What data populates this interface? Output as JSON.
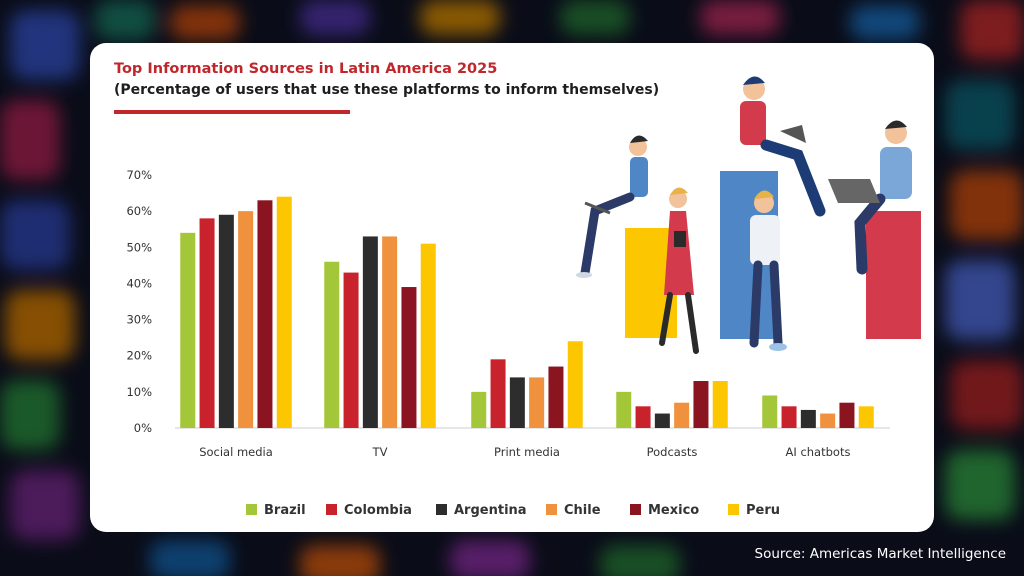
{
  "title": "Top Information Sources in Latin America 2025",
  "subtitle": "(Percentage of users that use these platforms to inform themselves)",
  "source": "Source: Americas Market Intelligence",
  "chart_data": {
    "type": "bar",
    "title": "Top Information Sources in Latin America 2025",
    "subtitle": "(Percentage of users that use these platforms to inform themselves)",
    "categories": [
      "Social media",
      "TV",
      "Print media",
      "Podcasts",
      "AI chatbots"
    ],
    "series": [
      {
        "name": "Brazil",
        "color": "#a4c639",
        "values": [
          54,
          46,
          10,
          10,
          9
        ]
      },
      {
        "name": "Colombia",
        "color": "#c8222c",
        "values": [
          58,
          43,
          19,
          6,
          6
        ]
      },
      {
        "name": "Argentina",
        "color": "#2d2d2d",
        "values": [
          59,
          53,
          14,
          4,
          5
        ]
      },
      {
        "name": "Chile",
        "color": "#f0913d",
        "values": [
          60,
          53,
          14,
          7,
          4
        ]
      },
      {
        "name": "Mexico",
        "color": "#8a1420",
        "values": [
          63,
          39,
          17,
          13,
          7
        ]
      },
      {
        "name": "Peru",
        "color": "#fcc600",
        "values": [
          64,
          51,
          24,
          13,
          6
        ]
      }
    ],
    "ylim": [
      0,
      70
    ],
    "yticks": [
      "0%",
      "10%",
      "20%",
      "30%",
      "40%",
      "50%",
      "60%",
      "70%"
    ],
    "ytick_values": [
      0,
      10,
      20,
      30,
      40,
      50,
      60,
      70
    ],
    "legend_position": "bottom",
    "grid": false
  }
}
